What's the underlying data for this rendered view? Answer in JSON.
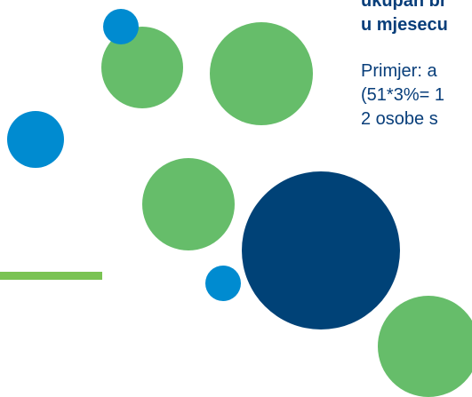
{
  "heading": {
    "line1": "ukupan br",
    "line2": "u mjesecu"
  },
  "example": {
    "line1": "Primjer: a",
    "line2": "(51*3%= 1",
    "line3": "2 osobe s"
  },
  "colors": {
    "green": "#66bd6a",
    "blue": "#008bd0",
    "navy": "#004277",
    "bar": "#7ac353",
    "text": "#083e7a"
  }
}
